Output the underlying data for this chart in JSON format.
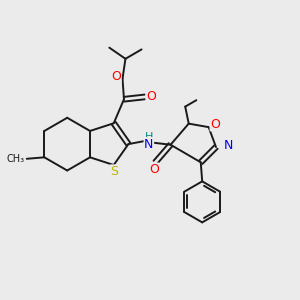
{
  "bg_color": "#ebebeb",
  "bond_color": "#1a1a1a",
  "atom_colors": {
    "S": "#b8b800",
    "O": "#ff0000",
    "N": "#0000ee",
    "H": "#008888",
    "C": "#1a1a1a"
  },
  "bond_lw": 1.4,
  "font_size": 8.5,
  "fig_size": [
    3.0,
    3.0
  ],
  "dpi": 100,
  "xlim": [
    0,
    10
  ],
  "ylim": [
    0,
    10
  ]
}
